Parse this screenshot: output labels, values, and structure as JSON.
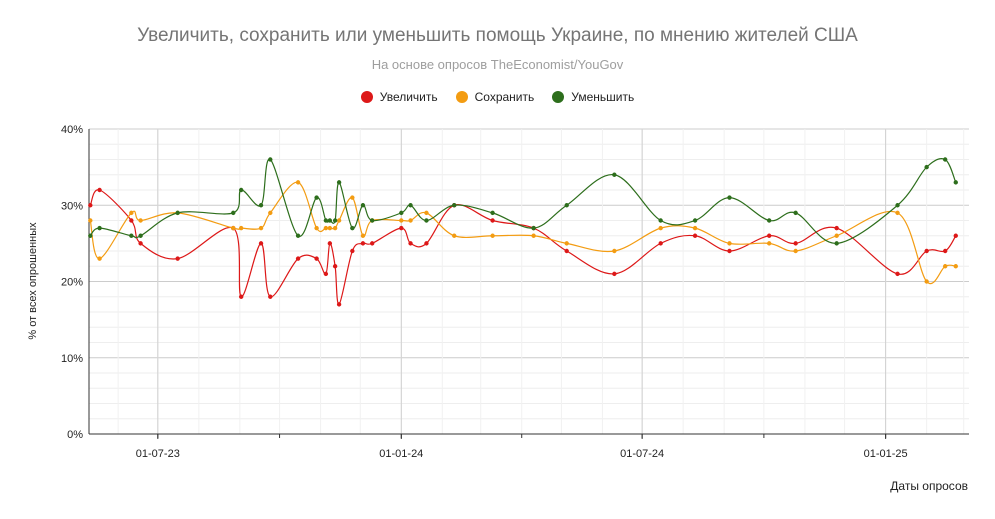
{
  "chart_data": {
    "type": "line",
    "title": "Увеличить, сохранить или уменьшить помощь Украине, по мнению жителей США",
    "subtitle": "На основе опросов TheEconomist/YouGov",
    "xlabel": "Даты опросов",
    "ylabel": "% от всех опрошенных",
    "x_ticks": [
      "01-07-23",
      "01-01-24",
      "01-07-24",
      "01-01-25"
    ],
    "y_ticks": [
      "0%",
      "10%",
      "20%",
      "30%",
      "40%"
    ],
    "ylim": [
      0,
      40
    ],
    "xlim": [
      "2023-05-10",
      "2025-03-05"
    ],
    "grid": true,
    "legend_position": "top",
    "x": [
      "2023-05-11",
      "2023-05-18",
      "2023-06-11",
      "2023-06-18",
      "2023-07-16",
      "2023-08-27",
      "2023-09-02",
      "2023-09-17",
      "2023-09-24",
      "2023-10-15",
      "2023-10-29",
      "2023-11-05",
      "2023-11-08",
      "2023-11-12",
      "2023-11-15",
      "2023-11-25",
      "2023-12-03",
      "2023-12-10",
      "2024-01-01",
      "2024-01-08",
      "2024-01-20",
      "2024-02-10",
      "2024-02-15",
      "2024-03-10",
      "2024-04-10",
      "2024-05-05",
      "2024-06-10",
      "2024-07-15",
      "2024-08-10",
      "2024-09-05",
      "2024-10-05",
      "2024-10-25",
      "2024-11-25",
      "2024-12-20",
      "2025-01-10",
      "2025-02-01",
      "2025-02-15",
      "2025-02-23",
      "2025-03-04"
    ],
    "series": [
      {
        "name": "Увеличить",
        "color": "#dd1818",
        "values": [
          30,
          32,
          28,
          25,
          23,
          27,
          18,
          25,
          18,
          23,
          23,
          21,
          25,
          22,
          17,
          24,
          25,
          25,
          27,
          25,
          25,
          30,
          null,
          28,
          27,
          24,
          21,
          25,
          26,
          24,
          26,
          25,
          27,
          null,
          21,
          24,
          24,
          26,
          null
        ]
      },
      {
        "name": "Сохранить",
        "color": "#f39c12",
        "values": [
          28,
          23,
          29,
          28,
          29,
          27,
          27,
          27,
          29,
          33,
          27,
          27,
          27,
          27,
          28,
          31,
          26,
          28,
          28,
          28,
          29,
          26,
          null,
          26,
          26,
          25,
          24,
          27,
          27,
          25,
          25,
          24,
          26,
          null,
          29,
          20,
          22,
          22,
          null
        ]
      },
      {
        "name": "Уменьшить",
        "color": "#2d6e1c",
        "values": [
          26,
          27,
          26,
          26,
          29,
          29,
          32,
          30,
          36,
          26,
          31,
          28,
          28,
          28,
          33,
          27,
          30,
          28,
          29,
          30,
          28,
          30,
          null,
          29,
          27,
          30,
          34,
          28,
          28,
          31,
          28,
          29,
          25,
          null,
          30,
          35,
          36,
          33,
          null
        ]
      }
    ]
  }
}
